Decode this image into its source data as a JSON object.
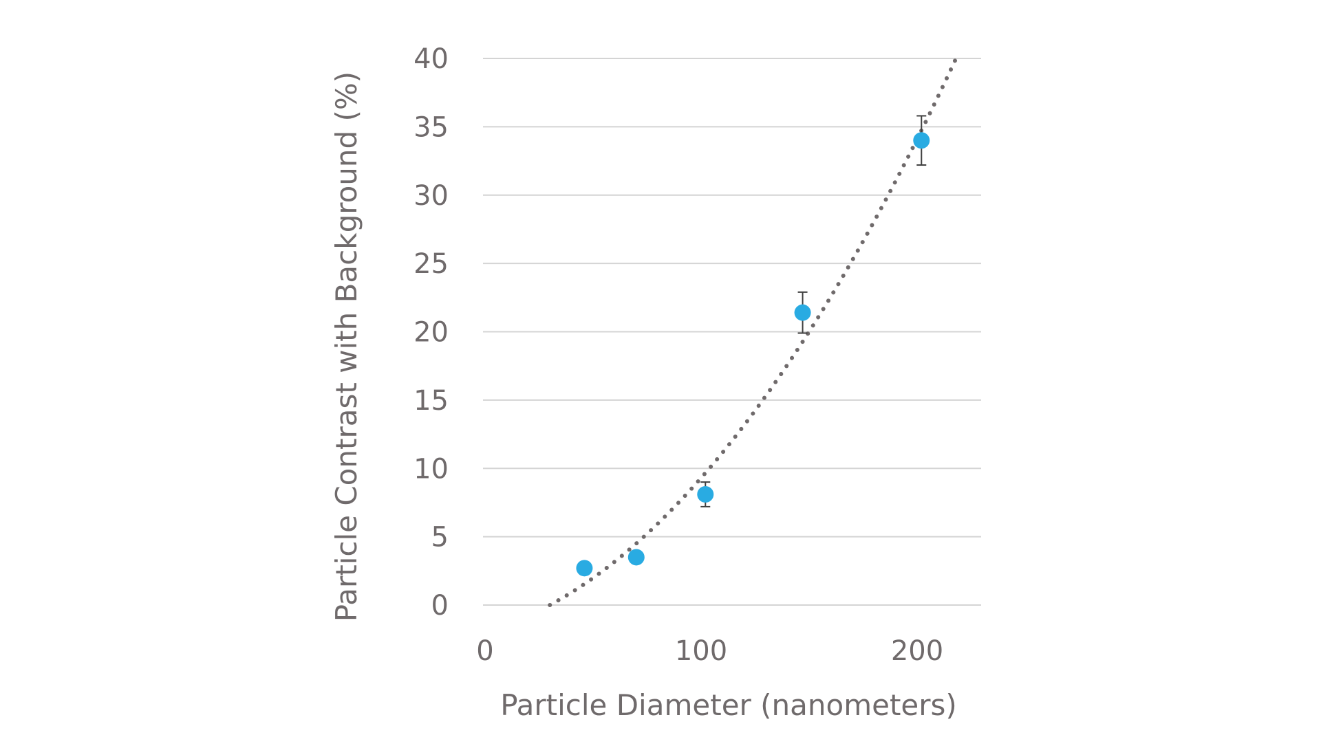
{
  "chart_data": {
    "type": "scatter",
    "title": "",
    "xlabel": "Particle Diameter (nanometers)",
    "ylabel": "Particle Contrast with Background (%)",
    "xlim": [
      0,
      230
    ],
    "ylim": [
      0,
      40
    ],
    "x_ticks": [
      "0",
      "100",
      "200"
    ],
    "x_tick_values": [
      0,
      100,
      200
    ],
    "y_ticks": [
      "0",
      "5",
      "10",
      "15",
      "20",
      "25",
      "30",
      "35",
      "40"
    ],
    "y_tick_values": [
      0,
      5,
      10,
      15,
      20,
      25,
      30,
      35,
      40
    ],
    "grid": "horizontal",
    "legend": "none",
    "series": [
      {
        "type": "scatter",
        "color": "#29abe2",
        "points": [
          {
            "x": 46,
            "y": 2.7,
            "error": 0
          },
          {
            "x": 70,
            "y": 3.5,
            "error": 0
          },
          {
            "x": 102,
            "y": 8.1,
            "error": 0.9
          },
          {
            "x": 147,
            "y": 21.4,
            "error": 1.5
          },
          {
            "x": 202,
            "y": 34.0,
            "error": 1.8
          }
        ]
      },
      {
        "type": "trendline",
        "style": "dotted",
        "color": "#6f6a6b",
        "fit": "quadratic",
        "x_range": [
          30,
          218
        ],
        "points": [
          {
            "x": 30,
            "y": 0
          },
          {
            "x": 218,
            "y": 40
          }
        ]
      }
    ]
  }
}
